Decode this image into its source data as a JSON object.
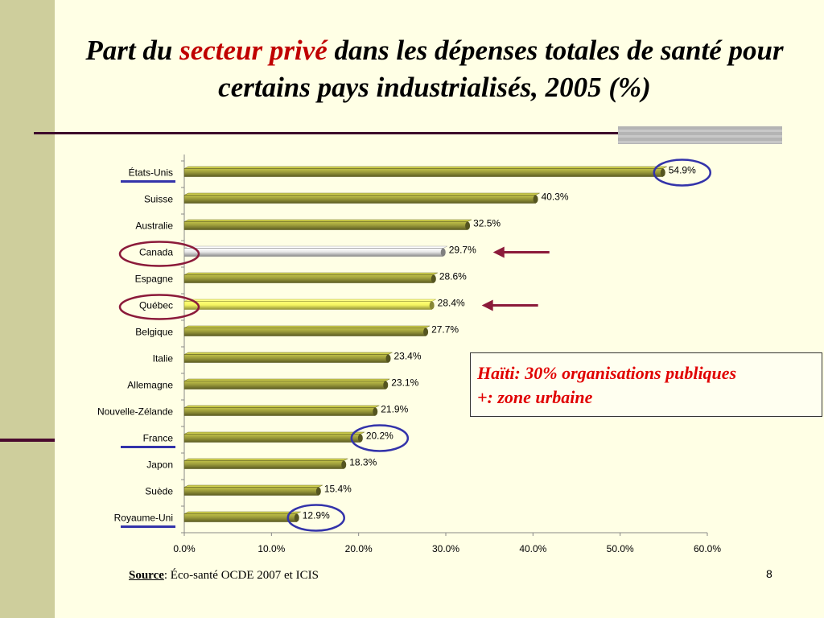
{
  "slide": {
    "title_prefix": "Part du ",
    "title_highlight": "secteur privé",
    "title_suffix": " dans les dépenses totales de santé pour certains pays industrialisés, 2005 (%)",
    "callout_line1": "Haïti: 30% organisations publiques",
    "callout_line2": "+: zone urbaine",
    "source_label": "Source",
    "source_text": ": Éco-santé OCDE 2007 et ICIS",
    "page_number": "8"
  },
  "colors": {
    "bar_default": "#9B9B3A",
    "bar_canada": "#E8E8E8",
    "bar_quebec": "#F5F560",
    "circle_red": "#8B1A3A",
    "circle_blue": "#3333AA",
    "arrow": "#8B1A3A",
    "underline_blue": "#3333AA"
  },
  "chart_data": {
    "type": "bar",
    "orientation": "horizontal",
    "categories": [
      "États-Unis",
      "Suisse",
      "Australie",
      "Canada",
      "Espagne",
      "Québec",
      "Belgique",
      "Italie",
      "Allemagne",
      "Nouvelle-Zélande",
      "France",
      "Japon",
      "Suède",
      "Royaume-Uni"
    ],
    "values": [
      54.9,
      40.3,
      32.5,
      29.7,
      28.6,
      28.4,
      27.7,
      23.4,
      23.1,
      21.9,
      20.2,
      18.3,
      15.4,
      12.9
    ],
    "value_labels": [
      "54.9%",
      "40.3%",
      "32.5%",
      "29.7%",
      "28.6%",
      "28.4%",
      "27.7%",
      "23.4%",
      "23.1%",
      "21.9%",
      "20.2%",
      "18.3%",
      "15.4%",
      "12.9%"
    ],
    "xlim": [
      0,
      60
    ],
    "xticks": [
      "0.0%",
      "10.0%",
      "20.0%",
      "30.0%",
      "40.0%",
      "50.0%",
      "60.0%"
    ],
    "highlighted_bars": {
      "Canada": "white",
      "Québec": "yellow"
    },
    "circled_labels": [
      "Canada",
      "Québec"
    ],
    "underlined_labels": [
      "États-Unis",
      "France",
      "Royaume-Uni"
    ],
    "circled_values": [
      "54.9%",
      "20.2%",
      "12.9%"
    ],
    "arrows_pointing_to": [
      "Canada",
      "Québec"
    ],
    "grid": false
  }
}
